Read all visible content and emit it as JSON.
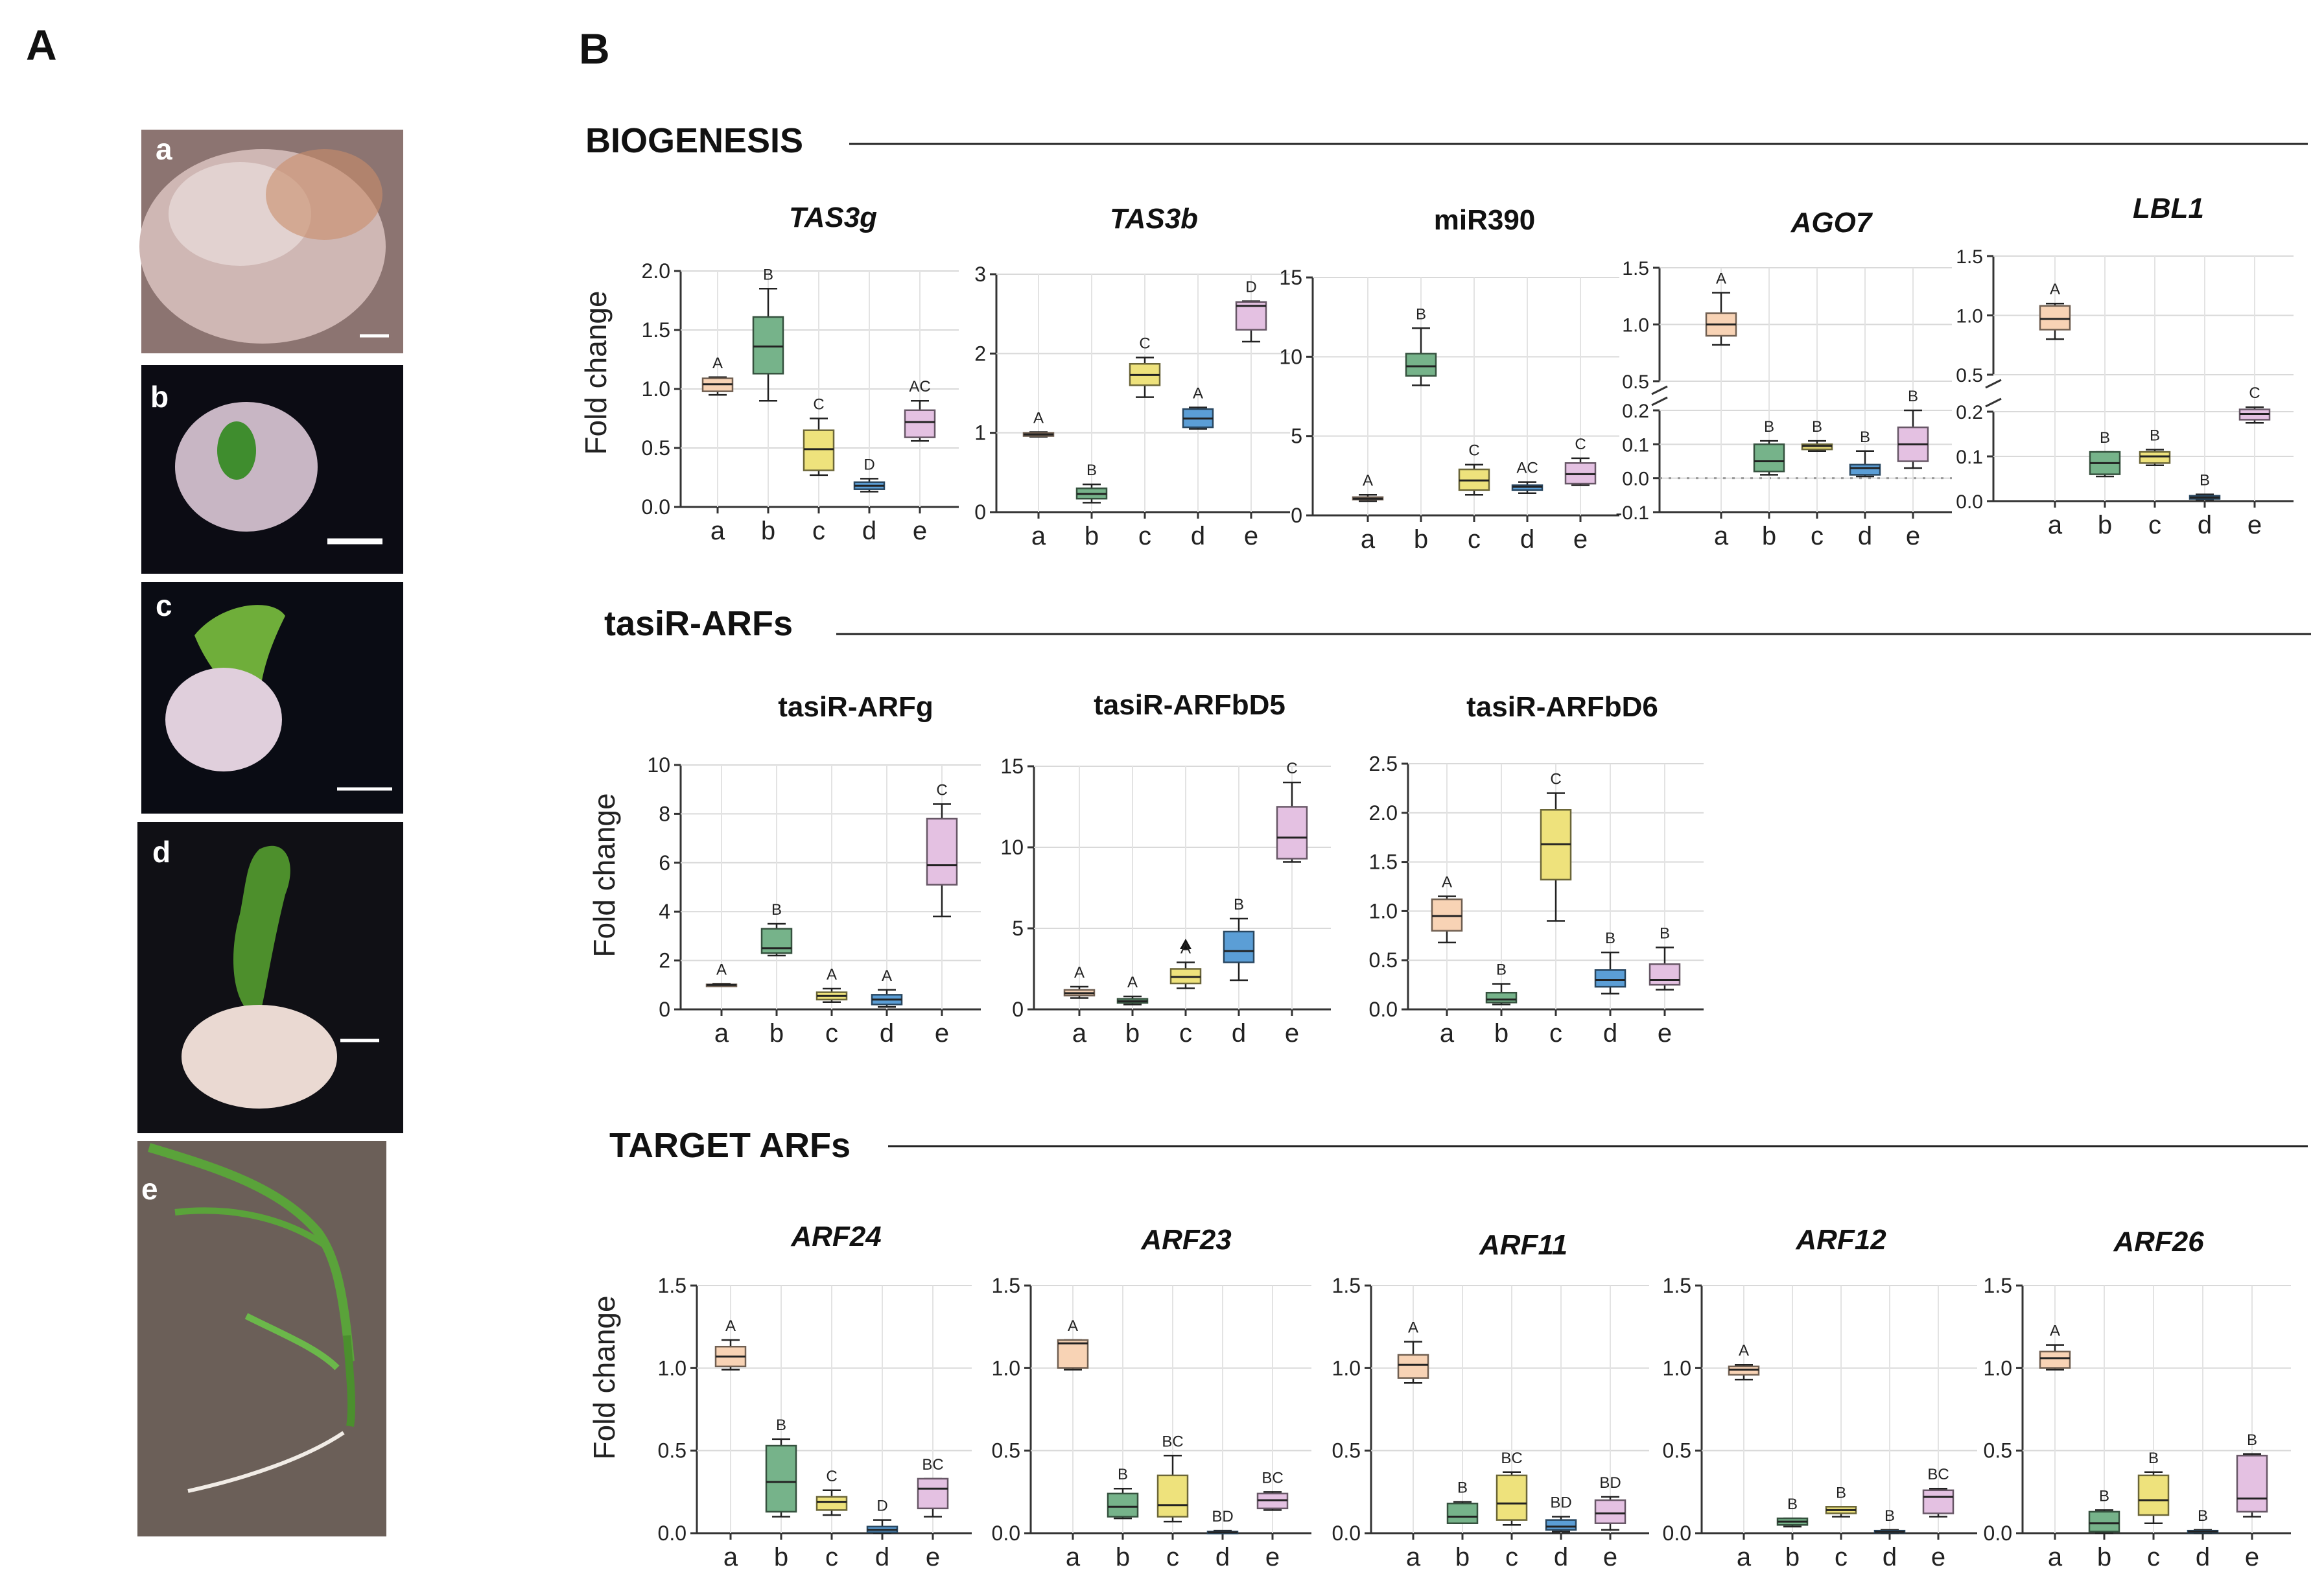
{
  "panel_labels": {
    "A": "A",
    "B": "B"
  },
  "photos": {
    "tags": [
      "a",
      "b",
      "c",
      "d",
      "e"
    ],
    "colors": {
      "a": "#b89a96",
      "b": "#0c0c14",
      "c": "#0a0c14",
      "d": "#101015",
      "e": "#6b5f58"
    }
  },
  "sections": {
    "biogenesis": "BIOGENESIS",
    "tasir": "tasiR-ARFs",
    "target": "TARGET ARFs"
  },
  "y_label": "Fold change",
  "palette": {
    "a": "#f8d3b5",
    "b": "#76b38a",
    "c": "#eee27c",
    "d": "#5b9ed6",
    "e": "#e4c1e2"
  },
  "chart_data": [
    {
      "id": "TAS3g",
      "type": "box",
      "title": "TAS3g",
      "title_italic": true,
      "categories": [
        "a",
        "b",
        "c",
        "d",
        "e"
      ],
      "ylim": [
        0,
        2.0
      ],
      "ticks": [
        "0.0",
        "0.5",
        "1.0",
        "1.5",
        "2.0"
      ],
      "tick_values": [
        0,
        0.5,
        1.0,
        1.5,
        2.0
      ],
      "boxes": [
        {
          "min": 0.95,
          "q1": 0.98,
          "median": 1.04,
          "q3": 1.09,
          "max": 1.1,
          "letter": "A"
        },
        {
          "min": 0.9,
          "q1": 1.13,
          "median": 1.36,
          "q3": 1.61,
          "max": 1.85,
          "letter": "B"
        },
        {
          "min": 0.27,
          "q1": 0.31,
          "median": 0.49,
          "q3": 0.65,
          "max": 0.75,
          "letter": "C"
        },
        {
          "min": 0.13,
          "q1": 0.15,
          "median": 0.18,
          "q3": 0.21,
          "max": 0.24,
          "letter": "D"
        },
        {
          "min": 0.56,
          "q1": 0.59,
          "median": 0.72,
          "q3": 0.82,
          "max": 0.9,
          "letter": "AC"
        }
      ]
    },
    {
      "id": "TAS3b",
      "type": "box",
      "title": "TAS3b",
      "title_italic": true,
      "categories": [
        "a",
        "b",
        "c",
        "d",
        "e"
      ],
      "ylim": [
        0,
        3
      ],
      "ticks": [
        "0",
        "1",
        "2",
        "3"
      ],
      "tick_values": [
        0,
        1,
        2,
        3
      ],
      "boxes": [
        {
          "min": 0.95,
          "q1": 0.96,
          "median": 0.98,
          "q3": 1.0,
          "max": 1.01,
          "letter": "A"
        },
        {
          "min": 0.12,
          "q1": 0.17,
          "median": 0.23,
          "q3": 0.3,
          "max": 0.35,
          "letter": "B"
        },
        {
          "min": 1.45,
          "q1": 1.6,
          "median": 1.73,
          "q3": 1.87,
          "max": 1.95,
          "letter": "C"
        },
        {
          "min": 1.05,
          "q1": 1.07,
          "median": 1.18,
          "q3": 1.3,
          "max": 1.32,
          "letter": "A"
        },
        {
          "min": 2.15,
          "q1": 2.3,
          "median": 2.6,
          "q3": 2.65,
          "max": 2.66,
          "letter": "D"
        }
      ]
    },
    {
      "id": "miR390",
      "type": "box",
      "title": "miR390",
      "title_italic": false,
      "categories": [
        "a",
        "b",
        "c",
        "d",
        "e"
      ],
      "ylim": [
        0,
        15
      ],
      "ticks": [
        "0",
        "5",
        "10",
        "15"
      ],
      "tick_values": [
        0,
        5,
        10,
        15
      ],
      "boxes": [
        {
          "min": 0.9,
          "q1": 1.0,
          "median": 1.05,
          "q3": 1.15,
          "max": 1.3,
          "letter": "A"
        },
        {
          "min": 8.2,
          "q1": 8.8,
          "median": 9.4,
          "q3": 10.2,
          "max": 11.8,
          "letter": "B"
        },
        {
          "min": 1.3,
          "q1": 1.6,
          "median": 2.2,
          "q3": 2.9,
          "max": 3.2,
          "letter": "C"
        },
        {
          "min": 1.4,
          "q1": 1.6,
          "median": 1.8,
          "q3": 1.9,
          "max": 2.1,
          "letter": "AC"
        },
        {
          "min": 1.9,
          "q1": 2.0,
          "median": 2.6,
          "q3": 3.3,
          "max": 3.6,
          "letter": "C"
        }
      ]
    },
    {
      "id": "AGO7",
      "type": "box",
      "title": "AGO7",
      "title_italic": true,
      "broken_axis": true,
      "categories": [
        "a",
        "b",
        "c",
        "d",
        "e"
      ],
      "ticks_lower": [
        "-0.1",
        "0.0",
        "0.1",
        "0.2"
      ],
      "tick_values_lower": [
        -0.1,
        0,
        0.1,
        0.2
      ],
      "ticks_upper": [
        "0.5",
        "1.0",
        "1.5"
      ],
      "tick_values_upper": [
        0.5,
        1.0,
        1.5
      ],
      "boxes": [
        {
          "min": 0.82,
          "q1": 0.9,
          "median": 1.0,
          "q3": 1.1,
          "max": 1.28,
          "letter": "A"
        },
        {
          "min": 0.01,
          "q1": 0.02,
          "median": 0.05,
          "q3": 0.1,
          "max": 0.11,
          "letter": "B"
        },
        {
          "min": 0.08,
          "q1": 0.085,
          "median": 0.095,
          "q3": 0.1,
          "max": 0.11,
          "letter": "B"
        },
        {
          "min": 0.005,
          "q1": 0.01,
          "median": 0.03,
          "q3": 0.04,
          "max": 0.08,
          "letter": "B"
        },
        {
          "min": 0.03,
          "q1": 0.05,
          "median": 0.1,
          "q3": 0.15,
          "max": 0.2,
          "letter": "B"
        }
      ]
    },
    {
      "id": "LBL1",
      "type": "box",
      "title": "LBL1",
      "title_italic": true,
      "broken_axis": true,
      "categories": [
        "a",
        "b",
        "c",
        "d",
        "e"
      ],
      "ticks_lower": [
        "0.0",
        "0.1",
        "0.2"
      ],
      "tick_values_lower": [
        0,
        0.1,
        0.2
      ],
      "ticks_upper": [
        "0.5",
        "1.0",
        "1.5"
      ],
      "tick_values_upper": [
        0.5,
        1.0,
        1.5
      ],
      "boxes": [
        {
          "min": 0.8,
          "q1": 0.88,
          "median": 0.97,
          "q3": 1.08,
          "max": 1.1,
          "letter": "A"
        },
        {
          "min": 0.055,
          "q1": 0.06,
          "median": 0.085,
          "q3": 0.11,
          "max": 0.11,
          "letter": "B"
        },
        {
          "min": 0.08,
          "q1": 0.085,
          "median": 0.1,
          "q3": 0.11,
          "max": 0.115,
          "letter": "B"
        },
        {
          "min": 0.003,
          "q1": 0.005,
          "median": 0.008,
          "q3": 0.012,
          "max": 0.015,
          "letter": "B"
        },
        {
          "min": 0.175,
          "q1": 0.182,
          "median": 0.195,
          "q3": 0.205,
          "max": 0.21,
          "letter": "C"
        }
      ]
    },
    {
      "id": "tasiR-ARFg",
      "type": "box",
      "title": "tasiR-ARFg",
      "title_italic": false,
      "categories": [
        "a",
        "b",
        "c",
        "d",
        "e"
      ],
      "ylim": [
        0,
        10
      ],
      "ticks": [
        "0",
        "2",
        "4",
        "6",
        "8",
        "10"
      ],
      "tick_values": [
        0,
        2,
        4,
        6,
        8,
        10
      ],
      "boxes": [
        {
          "min": 0.95,
          "q1": 0.97,
          "median": 1.0,
          "q3": 1.02,
          "max": 1.05,
          "letter": "A"
        },
        {
          "min": 2.2,
          "q1": 2.3,
          "median": 2.5,
          "q3": 3.3,
          "max": 3.5,
          "letter": "B"
        },
        {
          "min": 0.3,
          "q1": 0.4,
          "median": 0.55,
          "q3": 0.7,
          "max": 0.85,
          "letter": "A"
        },
        {
          "min": 0.1,
          "q1": 0.2,
          "median": 0.4,
          "q3": 0.6,
          "max": 0.8,
          "letter": "A"
        },
        {
          "min": 3.8,
          "q1": 5.1,
          "median": 5.9,
          "q3": 7.8,
          "max": 8.4,
          "letter": "C"
        }
      ]
    },
    {
      "id": "tasiR-ARFbD5",
      "type": "box",
      "title": "tasiR-ARFbD5",
      "title_italic": false,
      "categories": [
        "a",
        "b",
        "c",
        "d",
        "e"
      ],
      "ylim": [
        0,
        15
      ],
      "ticks": [
        "0",
        "5",
        "10",
        "15"
      ],
      "tick_values": [
        0,
        5,
        10,
        15
      ],
      "boxes": [
        {
          "min": 0.7,
          "q1": 0.85,
          "median": 1.0,
          "q3": 1.2,
          "max": 1.4,
          "letter": "A"
        },
        {
          "min": 0.3,
          "q1": 0.4,
          "median": 0.5,
          "q3": 0.65,
          "max": 0.8,
          "letter": "A"
        },
        {
          "min": 1.3,
          "q1": 1.6,
          "median": 2.0,
          "q3": 2.5,
          "max": 2.9,
          "letter": "A",
          "outlier": 4.0
        },
        {
          "min": 1.8,
          "q1": 2.9,
          "median": 3.6,
          "q3": 4.8,
          "max": 5.6,
          "letter": "B"
        },
        {
          "min": 9.1,
          "q1": 9.3,
          "median": 10.6,
          "q3": 12.5,
          "max": 14.0,
          "letter": "C"
        }
      ]
    },
    {
      "id": "tasiR-ARFbD6",
      "type": "box",
      "title": "tasiR-ARFbD6",
      "title_italic": false,
      "categories": [
        "a",
        "b",
        "c",
        "d",
        "e"
      ],
      "ylim": [
        0,
        2.5
      ],
      "ticks": [
        "0.0",
        "0.5",
        "1.0",
        "1.5",
        "2.0",
        "2.5"
      ],
      "tick_values": [
        0,
        0.5,
        1.0,
        1.5,
        2.0,
        2.5
      ],
      "boxes": [
        {
          "min": 0.68,
          "q1": 0.8,
          "median": 0.95,
          "q3": 1.12,
          "max": 1.15,
          "letter": "A"
        },
        {
          "min": 0.05,
          "q1": 0.07,
          "median": 0.1,
          "q3": 0.17,
          "max": 0.26,
          "letter": "B"
        },
        {
          "min": 0.9,
          "q1": 1.32,
          "median": 1.68,
          "q3": 2.03,
          "max": 2.2,
          "letter": "C"
        },
        {
          "min": 0.16,
          "q1": 0.23,
          "median": 0.3,
          "q3": 0.4,
          "max": 0.58,
          "letter": "B"
        },
        {
          "min": 0.2,
          "q1": 0.25,
          "median": 0.3,
          "q3": 0.46,
          "max": 0.63,
          "letter": "B"
        }
      ]
    },
    {
      "id": "ARF24",
      "type": "box",
      "title": "ARF24",
      "title_italic": true,
      "categories": [
        "a",
        "b",
        "c",
        "d",
        "e"
      ],
      "ylim": [
        0,
        1.5
      ],
      "ticks": [
        "0.0",
        "0.5",
        "1.0",
        "1.5"
      ],
      "tick_values": [
        0,
        0.5,
        1.0,
        1.5
      ],
      "boxes": [
        {
          "min": 0.99,
          "q1": 1.01,
          "median": 1.07,
          "q3": 1.13,
          "max": 1.17,
          "letter": "A"
        },
        {
          "min": 0.1,
          "q1": 0.13,
          "median": 0.31,
          "q3": 0.53,
          "max": 0.57,
          "letter": "B"
        },
        {
          "min": 0.11,
          "q1": 0.14,
          "median": 0.19,
          "q3": 0.22,
          "max": 0.26,
          "letter": "C"
        },
        {
          "min": 0.0,
          "q1": 0.005,
          "median": 0.02,
          "q3": 0.04,
          "max": 0.08,
          "letter": "D"
        },
        {
          "min": 0.1,
          "q1": 0.15,
          "median": 0.27,
          "q3": 0.33,
          "max": 0.33,
          "letter": "BC"
        }
      ]
    },
    {
      "id": "ARF23",
      "type": "box",
      "title": "ARF23",
      "title_italic": true,
      "categories": [
        "a",
        "b",
        "c",
        "d",
        "e"
      ],
      "ylim": [
        0,
        1.5
      ],
      "ticks": [
        "0.0",
        "0.5",
        "1.0",
        "1.5"
      ],
      "tick_values": [
        0,
        0.5,
        1.0,
        1.5
      ],
      "boxes": [
        {
          "min": 0.99,
          "q1": 1.0,
          "median": 1.15,
          "q3": 1.17,
          "max": 1.17,
          "letter": "A"
        },
        {
          "min": 0.09,
          "q1": 0.1,
          "median": 0.16,
          "q3": 0.24,
          "max": 0.27,
          "letter": "B"
        },
        {
          "min": 0.07,
          "q1": 0.1,
          "median": 0.17,
          "q3": 0.35,
          "max": 0.47,
          "letter": "BC"
        },
        {
          "min": 0.0,
          "q1": 0.002,
          "median": 0.005,
          "q3": 0.01,
          "max": 0.015,
          "letter": "BD"
        },
        {
          "min": 0.14,
          "q1": 0.15,
          "median": 0.2,
          "q3": 0.24,
          "max": 0.25,
          "letter": "BC"
        }
      ]
    },
    {
      "id": "ARF11",
      "type": "box",
      "title": "ARF11",
      "title_italic": true,
      "categories": [
        "a",
        "b",
        "c",
        "d",
        "e"
      ],
      "ylim": [
        0,
        1.5
      ],
      "ticks": [
        "0.0",
        "0.5",
        "1.0",
        "1.5"
      ],
      "tick_values": [
        0,
        0.5,
        1.0,
        1.5
      ],
      "boxes": [
        {
          "min": 0.91,
          "q1": 0.94,
          "median": 1.02,
          "q3": 1.08,
          "max": 1.16,
          "letter": "A"
        },
        {
          "min": 0.06,
          "q1": 0.06,
          "median": 0.1,
          "q3": 0.18,
          "max": 0.19,
          "letter": "B"
        },
        {
          "min": 0.05,
          "q1": 0.08,
          "median": 0.18,
          "q3": 0.35,
          "max": 0.37,
          "letter": "BC"
        },
        {
          "min": 0.01,
          "q1": 0.02,
          "median": 0.04,
          "q3": 0.08,
          "max": 0.1,
          "letter": "BD"
        },
        {
          "min": 0.02,
          "q1": 0.06,
          "median": 0.12,
          "q3": 0.2,
          "max": 0.22,
          "letter": "BD"
        }
      ]
    },
    {
      "id": "ARF12",
      "type": "box",
      "title": "ARF12",
      "title_italic": true,
      "categories": [
        "a",
        "b",
        "c",
        "d",
        "e"
      ],
      "ylim": [
        0,
        1.5
      ],
      "ticks": [
        "0.0",
        "0.5",
        "1.0",
        "1.5"
      ],
      "tick_values": [
        0,
        0.5,
        1.0,
        1.5
      ],
      "boxes": [
        {
          "min": 0.93,
          "q1": 0.96,
          "median": 0.99,
          "q3": 1.01,
          "max": 1.02,
          "letter": "A"
        },
        {
          "min": 0.04,
          "q1": 0.05,
          "median": 0.07,
          "q3": 0.09,
          "max": 0.09,
          "letter": "B"
        },
        {
          "min": 0.1,
          "q1": 0.12,
          "median": 0.14,
          "q3": 0.16,
          "max": 0.16,
          "letter": "B"
        },
        {
          "min": 0.0,
          "q1": 0.003,
          "median": 0.008,
          "q3": 0.015,
          "max": 0.02,
          "letter": "B"
        },
        {
          "min": 0.1,
          "q1": 0.12,
          "median": 0.22,
          "q3": 0.26,
          "max": 0.27,
          "letter": "BC"
        }
      ]
    },
    {
      "id": "ARF26",
      "type": "box",
      "title": "ARF26",
      "title_italic": true,
      "categories": [
        "a",
        "b",
        "c",
        "d",
        "e"
      ],
      "ylim": [
        0,
        1.5
      ],
      "ticks": [
        "0.0",
        "0.5",
        "1.0",
        "1.5"
      ],
      "tick_values": [
        0,
        0.5,
        1.0,
        1.5
      ],
      "boxes": [
        {
          "min": 0.99,
          "q1": 1.0,
          "median": 1.06,
          "q3": 1.1,
          "max": 1.14,
          "letter": "A"
        },
        {
          "min": 0.0,
          "q1": 0.01,
          "median": 0.06,
          "q3": 0.13,
          "max": 0.14,
          "letter": "B"
        },
        {
          "min": 0.06,
          "q1": 0.11,
          "median": 0.2,
          "q3": 0.35,
          "max": 0.37,
          "letter": "B"
        },
        {
          "min": 0.0,
          "q1": 0.005,
          "median": 0.01,
          "q3": 0.015,
          "max": 0.02,
          "letter": "B"
        },
        {
          "min": 0.1,
          "q1": 0.13,
          "median": 0.21,
          "q3": 0.47,
          "max": 0.48,
          "letter": "B"
        }
      ]
    }
  ]
}
